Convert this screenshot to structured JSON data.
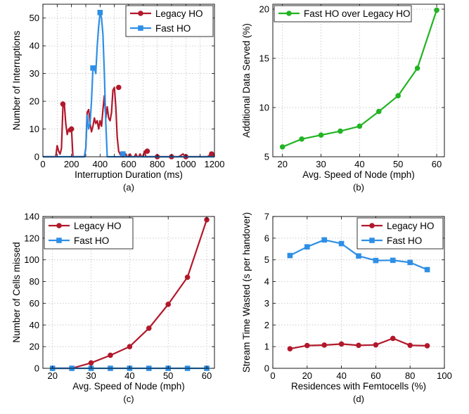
{
  "chart_data": [
    {
      "id": "a",
      "type": "line",
      "caption": "(a)",
      "xlabel": "Interruption Duration (ms)",
      "ylabel": "Number of Interruptions",
      "xlim": [
        0,
        1200
      ],
      "ylim": [
        0,
        55
      ],
      "xticks": [
        0,
        100,
        200,
        300,
        400,
        500,
        600,
        700,
        800,
        900,
        1000,
        1100,
        1200
      ],
      "xtick_labels": [
        "0",
        "",
        "200",
        "",
        "400",
        "",
        "600",
        "",
        "800",
        "",
        "1000",
        "",
        "1200"
      ],
      "yticks": [
        0,
        10,
        20,
        30,
        40,
        50
      ],
      "grid": true,
      "legend": "top-right",
      "series": [
        {
          "name": "Legacy HO",
          "color": "#b2182b",
          "marker": "circle",
          "marker_every": "sparse",
          "x": [
            0,
            50,
            90,
            100,
            110,
            120,
            130,
            140,
            150,
            160,
            170,
            180,
            190,
            200,
            210,
            220,
            230,
            240,
            250,
            260,
            270,
            280,
            290,
            300,
            310,
            320,
            330,
            340,
            350,
            360,
            370,
            380,
            390,
            400,
            410,
            420,
            430,
            440,
            450,
            460,
            470,
            480,
            490,
            500,
            510,
            520,
            530,
            540,
            550,
            560,
            570,
            580,
            590,
            600,
            610,
            620,
            630,
            640,
            650,
            660,
            670,
            680,
            690,
            700,
            710,
            720,
            730,
            740,
            750,
            760,
            770,
            780,
            790,
            800,
            850,
            900,
            950,
            980,
            1000,
            1020,
            1050,
            1100,
            1150,
            1180,
            1200
          ],
          "y": [
            0,
            0,
            0,
            4,
            2,
            1,
            3,
            18,
            19,
            12,
            8,
            10,
            9,
            10,
            0,
            0,
            0,
            0,
            0,
            0,
            0,
            0,
            0,
            3,
            16,
            17,
            12,
            9,
            11,
            14,
            12,
            13,
            10,
            13,
            11,
            17,
            22,
            14,
            18,
            14,
            13,
            16,
            24,
            25,
            18,
            7,
            2,
            1,
            0,
            0,
            0,
            1,
            0,
            0,
            1,
            0,
            0,
            0,
            1,
            0,
            0,
            1,
            0,
            0,
            2,
            0,
            0,
            0,
            0,
            0,
            0,
            0,
            0,
            0,
            0,
            0,
            0,
            1,
            0,
            0,
            0,
            0,
            0,
            1,
            0
          ],
          "markers": [
            [
              140,
              19
            ],
            [
              200,
              10
            ],
            [
              530,
              25
            ],
            [
              730,
              2
            ],
            [
              1180,
              1
            ],
            [
              800,
              0
            ],
            [
              1000,
              0
            ],
            [
              900,
              0
            ]
          ]
        },
        {
          "name": "Fast HO",
          "color": "#2e8fe6",
          "marker": "square",
          "x": [
            0,
            250,
            280,
            290,
            300,
            310,
            320,
            330,
            340,
            350,
            360,
            370,
            380,
            390,
            400,
            410,
            420,
            430,
            440,
            450,
            460,
            470,
            480,
            490,
            500,
            510,
            520,
            530,
            540,
            550,
            560,
            570,
            580,
            600,
            700,
            800,
            900,
            1000,
            1100,
            1200
          ],
          "y": [
            0,
            0,
            0,
            0,
            3,
            15,
            10,
            12,
            20,
            32,
            32,
            30,
            40,
            47,
            52,
            50,
            44,
            30,
            12,
            0,
            0,
            0,
            0,
            0,
            0,
            0,
            0,
            0,
            0,
            0,
            1,
            0,
            0,
            0,
            0,
            0,
            0,
            0,
            0,
            0
          ],
          "markers": [
            [
              350,
              32
            ],
            [
              400,
              52
            ],
            [
              560,
              1
            ]
          ]
        }
      ]
    },
    {
      "id": "b",
      "type": "line",
      "caption": "(b)",
      "xlabel": "Avg. Speed of Node (mph)",
      "ylabel": "Additional Data Served (%)",
      "xlim": [
        17.5,
        62
      ],
      "ylim": [
        5,
        20.5
      ],
      "xticks": [
        20,
        30,
        40,
        50,
        60
      ],
      "yticks": [
        5,
        10,
        15,
        20
      ],
      "grid": true,
      "legend": "top-left",
      "series": [
        {
          "name": "Fast HO over Legacy HO",
          "color": "#22b422",
          "marker": "circle",
          "x": [
            20,
            25,
            30,
            35,
            40,
            45,
            50,
            55,
            60
          ],
          "y": [
            6.0,
            6.8,
            7.2,
            7.6,
            8.1,
            9.6,
            11.2,
            14.0,
            19.9
          ]
        }
      ]
    },
    {
      "id": "c",
      "type": "line",
      "caption": "(c)",
      "xlabel": "Avg. Speed of Node (mph)",
      "ylabel": "Number of Cells missed",
      "xlim": [
        17.5,
        62
      ],
      "ylim": [
        0,
        140
      ],
      "xticks": [
        20,
        30,
        40,
        50,
        60
      ],
      "yticks": [
        0,
        20,
        40,
        60,
        80,
        100,
        120,
        140
      ],
      "grid": true,
      "legend": "top-left",
      "series": [
        {
          "name": "Legacy HO",
          "color": "#b2182b",
          "marker": "circle",
          "x": [
            20,
            25,
            30,
            35,
            40,
            45,
            50,
            55,
            60
          ],
          "y": [
            0,
            0,
            5,
            12,
            20,
            37,
            59,
            84,
            137
          ]
        },
        {
          "name": "Fast HO",
          "color": "#2e8fe6",
          "marker": "square",
          "x": [
            20,
            25,
            30,
            35,
            40,
            45,
            50,
            55,
            60
          ],
          "y": [
            0,
            0,
            0,
            0,
            0,
            0,
            0,
            0,
            0
          ]
        }
      ]
    },
    {
      "id": "d",
      "type": "line",
      "caption": "(d)",
      "xlabel": "Residences with Femtocells (%)",
      "ylabel": "Stream Time Wasted (s per handover)",
      "xlim": [
        0,
        100
      ],
      "ylim": [
        0,
        7
      ],
      "xticks": [
        0,
        20,
        40,
        60,
        80,
        100
      ],
      "yticks": [
        0,
        1,
        2,
        3,
        4,
        5,
        6,
        7
      ],
      "grid": true,
      "legend": "top-right",
      "series": [
        {
          "name": "Legacy HO",
          "color": "#b2182b",
          "marker": "circle",
          "x": [
            10,
            20,
            30,
            40,
            50,
            60,
            70,
            80,
            90
          ],
          "y": [
            0.9,
            1.05,
            1.07,
            1.12,
            1.06,
            1.08,
            1.38,
            1.06,
            1.04
          ]
        },
        {
          "name": "Fast HO",
          "color": "#2e8fe6",
          "marker": "square",
          "x": [
            10,
            20,
            30,
            40,
            50,
            60,
            70,
            80,
            90
          ],
          "y": [
            5.2,
            5.6,
            5.92,
            5.75,
            5.18,
            4.97,
            4.98,
            4.88,
            4.55
          ]
        }
      ]
    }
  ]
}
